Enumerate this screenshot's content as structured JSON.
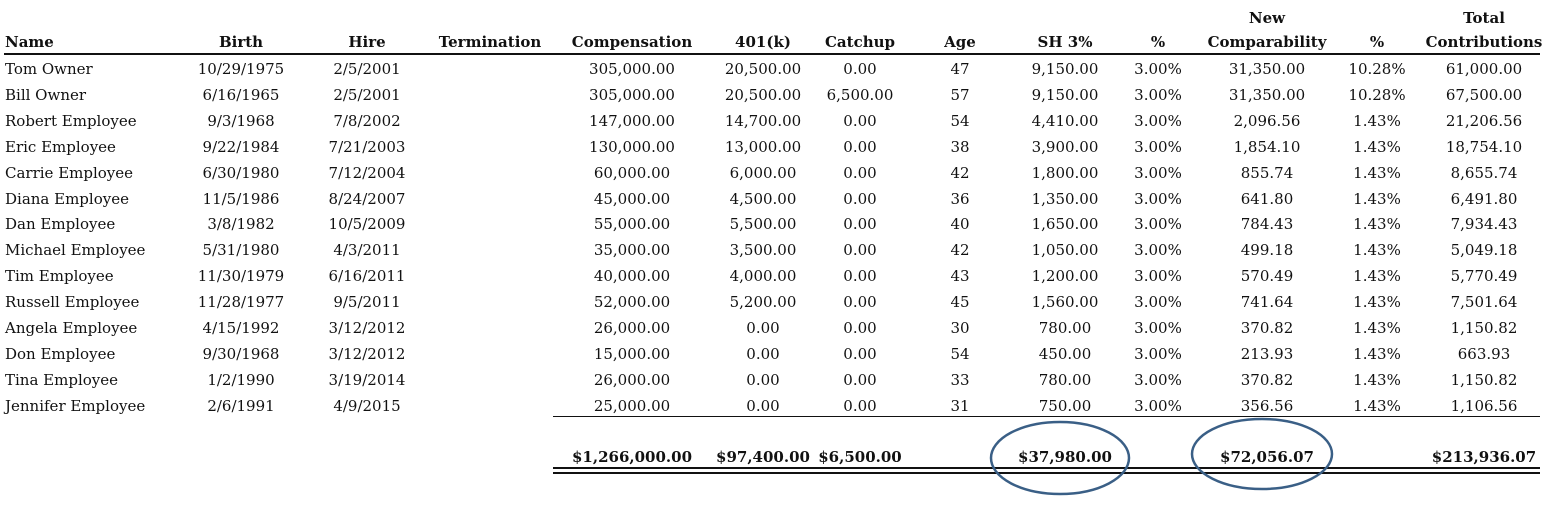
{
  "headers": {
    "name": "Name",
    "birth": "Birth",
    "hire": "Hire",
    "termination": "Termination",
    "compensation": "Compensation",
    "k401": "401(k)",
    "catchup": "Catchup",
    "age": "Age",
    "sh": "SH 3%",
    "sh_pct": "%",
    "new_comp_line1": "New",
    "new_comp_line2": "Comparability",
    "nc_pct": "%",
    "total_line1": "Total",
    "total_line2": "Contributions"
  },
  "rows": [
    {
      "name": "Tom Owner",
      "birth": "10/29/1975",
      "hire": "2/5/2001",
      "termination": "",
      "compensation": "305,000.00",
      "k401": "20,500.00",
      "catchup": "0.00",
      "age": "47",
      "sh": "9,150.00",
      "sh_pct": "3.00%",
      "new_comp": "31,350.00",
      "nc_pct": "10.28%",
      "total": "61,000.00"
    },
    {
      "name": "Bill Owner",
      "birth": "6/16/1965",
      "hire": "2/5/2001",
      "termination": "",
      "compensation": "305,000.00",
      "k401": "20,500.00",
      "catchup": "6,500.00",
      "age": "57",
      "sh": "9,150.00",
      "sh_pct": "3.00%",
      "new_comp": "31,350.00",
      "nc_pct": "10.28%",
      "total": "67,500.00"
    },
    {
      "name": "Robert Employee",
      "birth": "9/3/1968",
      "hire": "7/8/2002",
      "termination": "",
      "compensation": "147,000.00",
      "k401": "14,700.00",
      "catchup": "0.00",
      "age": "54",
      "sh": "4,410.00",
      "sh_pct": "3.00%",
      "new_comp": "2,096.56",
      "nc_pct": "1.43%",
      "total": "21,206.56"
    },
    {
      "name": "Eric Employee",
      "birth": "9/22/1984",
      "hire": "7/21/2003",
      "termination": "",
      "compensation": "130,000.00",
      "k401": "13,000.00",
      "catchup": "0.00",
      "age": "38",
      "sh": "3,900.00",
      "sh_pct": "3.00%",
      "new_comp": "1,854.10",
      "nc_pct": "1.43%",
      "total": "18,754.10"
    },
    {
      "name": "Carrie Employee",
      "birth": "6/30/1980",
      "hire": "7/12/2004",
      "termination": "",
      "compensation": "60,000.00",
      "k401": "6,000.00",
      "catchup": "0.00",
      "age": "42",
      "sh": "1,800.00",
      "sh_pct": "3.00%",
      "new_comp": "855.74",
      "nc_pct": "1.43%",
      "total": "8,655.74"
    },
    {
      "name": "Diana Employee",
      "birth": "11/5/1986",
      "hire": "8/24/2007",
      "termination": "",
      "compensation": "45,000.00",
      "k401": "4,500.00",
      "catchup": "0.00",
      "age": "36",
      "sh": "1,350.00",
      "sh_pct": "3.00%",
      "new_comp": "641.80",
      "nc_pct": "1.43%",
      "total": "6,491.80"
    },
    {
      "name": "Dan Employee",
      "birth": "3/8/1982",
      "hire": "10/5/2009",
      "termination": "",
      "compensation": "55,000.00",
      "k401": "5,500.00",
      "catchup": "0.00",
      "age": "40",
      "sh": "1,650.00",
      "sh_pct": "3.00%",
      "new_comp": "784.43",
      "nc_pct": "1.43%",
      "total": "7,934.43"
    },
    {
      "name": "Michael Employee",
      "birth": "5/31/1980",
      "hire": "4/3/2011",
      "termination": "",
      "compensation": "35,000.00",
      "k401": "3,500.00",
      "catchup": "0.00",
      "age": "42",
      "sh": "1,050.00",
      "sh_pct": "3.00%",
      "new_comp": "499.18",
      "nc_pct": "1.43%",
      "total": "5,049.18"
    },
    {
      "name": "Tim Employee",
      "birth": "11/30/1979",
      "hire": "6/16/2011",
      "termination": "",
      "compensation": "40,000.00",
      "k401": "4,000.00",
      "catchup": "0.00",
      "age": "43",
      "sh": "1,200.00",
      "sh_pct": "3.00%",
      "new_comp": "570.49",
      "nc_pct": "1.43%",
      "total": "5,770.49"
    },
    {
      "name": "Russell Employee",
      "birth": "11/28/1977",
      "hire": "9/5/2011",
      "termination": "",
      "compensation": "52,000.00",
      "k401": "5,200.00",
      "catchup": "0.00",
      "age": "45",
      "sh": "1,560.00",
      "sh_pct": "3.00%",
      "new_comp": "741.64",
      "nc_pct": "1.43%",
      "total": "7,501.64"
    },
    {
      "name": "Angela Employee",
      "birth": "4/15/1992",
      "hire": "3/12/2012",
      "termination": "",
      "compensation": "26,000.00",
      "k401": "0.00",
      "catchup": "0.00",
      "age": "30",
      "sh": "780.00",
      "sh_pct": "3.00%",
      "new_comp": "370.82",
      "nc_pct": "1.43%",
      "total": "1,150.82"
    },
    {
      "name": "Don Employee",
      "birth": "9/30/1968",
      "hire": "3/12/2012",
      "termination": "",
      "compensation": "15,000.00",
      "k401": "0.00",
      "catchup": "0.00",
      "age": "54",
      "sh": "450.00",
      "sh_pct": "3.00%",
      "new_comp": "213.93",
      "nc_pct": "1.43%",
      "total": "663.93"
    },
    {
      "name": "Tina Employee",
      "birth": "1/2/1990",
      "hire": "3/19/2014",
      "termination": "",
      "compensation": "26,000.00",
      "k401": "0.00",
      "catchup": "0.00",
      "age": "33",
      "sh": "780.00",
      "sh_pct": "3.00%",
      "new_comp": "370.82",
      "nc_pct": "1.43%",
      "total": "1,150.82"
    },
    {
      "name": "Jennifer Employee",
      "birth": "2/6/1991",
      "hire": "4/9/2015",
      "termination": "",
      "compensation": "25,000.00",
      "k401": "0.00",
      "catchup": "0.00",
      "age": "31",
      "sh": "750.00",
      "sh_pct": "3.00%",
      "new_comp": "356.56",
      "nc_pct": "1.43%",
      "total": "1,106.56"
    }
  ],
  "totals": {
    "compensation": "$1,266,000.00",
    "k401": "$97,400.00",
    "catchup": "$6,500.00",
    "sh": "$37,980.00",
    "new_comp": "$72,056.07",
    "total": "$213,936.07"
  },
  "colors": {
    "text": "#111111",
    "highlight_circle": "#3a5f86"
  }
}
